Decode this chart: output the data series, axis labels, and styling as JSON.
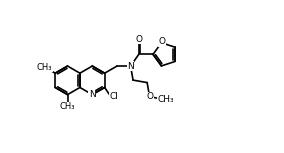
{
  "bg": "white",
  "lc": "black",
  "lw": 1.2,
  "fs": 6.5,
  "xlim": [
    0,
    10
  ],
  "ylim": [
    0,
    6
  ],
  "figw": 2.84,
  "figh": 1.53,
  "dpi": 100
}
